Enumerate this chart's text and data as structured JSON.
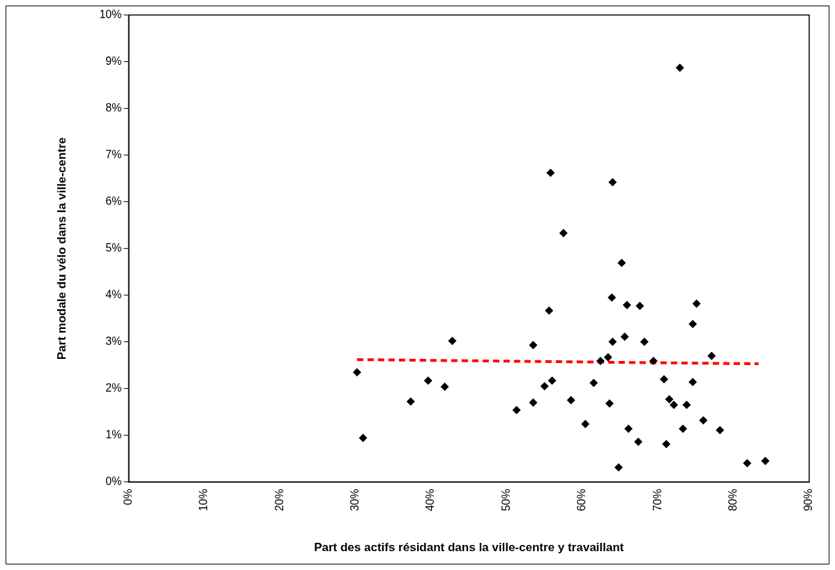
{
  "chart_data": {
    "type": "scatter",
    "xlabel": "Part des actifs résidant dans la ville-centre y travaillant",
    "ylabel": "Part modale du vélo dans la ville-centre",
    "series": [
      {
        "type": "scatter",
        "color": "#000000",
        "marker": "diamond",
        "x": [
          30.2,
          31.0,
          37.3,
          39.6,
          41.8,
          42.8,
          51.3,
          53.5,
          53.5,
          55.0,
          56.0,
          55.6,
          55.8,
          57.5,
          58.5,
          64.0,
          65.2,
          63.9,
          65.9,
          67.6,
          75.1,
          74.6,
          65.6,
          64.0,
          68.2,
          77.1,
          63.4,
          62.4,
          69.4,
          70.8,
          74.6,
          61.5,
          63.6,
          71.5,
          72.1,
          73.8,
          76.0,
          60.4,
          66.1,
          73.3,
          78.2,
          67.4,
          71.1,
          64.8,
          81.8,
          84.2,
          72.9
        ],
        "values": [
          2.35,
          0.94,
          1.72,
          2.17,
          2.04,
          3.02,
          1.54,
          1.7,
          2.93,
          2.05,
          2.17,
          3.67,
          6.62,
          5.33,
          1.75,
          6.42,
          4.69,
          3.95,
          3.79,
          3.77,
          3.82,
          3.38,
          3.11,
          3.0,
          3.0,
          2.7,
          2.67,
          2.59,
          2.59,
          2.2,
          2.14,
          2.12,
          1.68,
          1.77,
          1.65,
          1.65,
          1.32,
          1.24,
          1.14,
          1.14,
          1.11,
          0.86,
          0.81,
          0.31,
          0.4,
          0.45,
          8.87
        ]
      },
      {
        "type": "line",
        "color": "#ff0000",
        "line_style": "dashed",
        "marker": "none",
        "x": [
          30.2,
          83.3
        ],
        "values": [
          2.62,
          2.53
        ]
      }
    ],
    "xlim": [
      0,
      90
    ],
    "xticks": [
      {
        "value": 0,
        "label": "0%"
      },
      {
        "value": 10,
        "label": "10%"
      },
      {
        "value": 20,
        "label": "20%"
      },
      {
        "value": 30,
        "label": "30%"
      },
      {
        "value": 40,
        "label": "40%"
      },
      {
        "value": 50,
        "label": "50%"
      },
      {
        "value": 60,
        "label": "60%"
      },
      {
        "value": 70,
        "label": "70%"
      },
      {
        "value": 80,
        "label": "80%"
      },
      {
        "value": 90,
        "label": "90%"
      }
    ],
    "ylim": [
      0,
      10
    ],
    "yticks": [
      {
        "value": 0,
        "label": "0%"
      },
      {
        "value": 1,
        "label": "1%"
      },
      {
        "value": 2,
        "label": "2%"
      },
      {
        "value": 3,
        "label": "3%"
      },
      {
        "value": 4,
        "label": "4%"
      },
      {
        "value": 5,
        "label": "5%"
      },
      {
        "value": 6,
        "label": "6%"
      },
      {
        "value": 7,
        "label": "7%"
      },
      {
        "value": 8,
        "label": "8%"
      },
      {
        "value": 9,
        "label": "9%"
      },
      {
        "value": 10,
        "label": "10%"
      }
    ],
    "grid": false,
    "legend": false
  }
}
